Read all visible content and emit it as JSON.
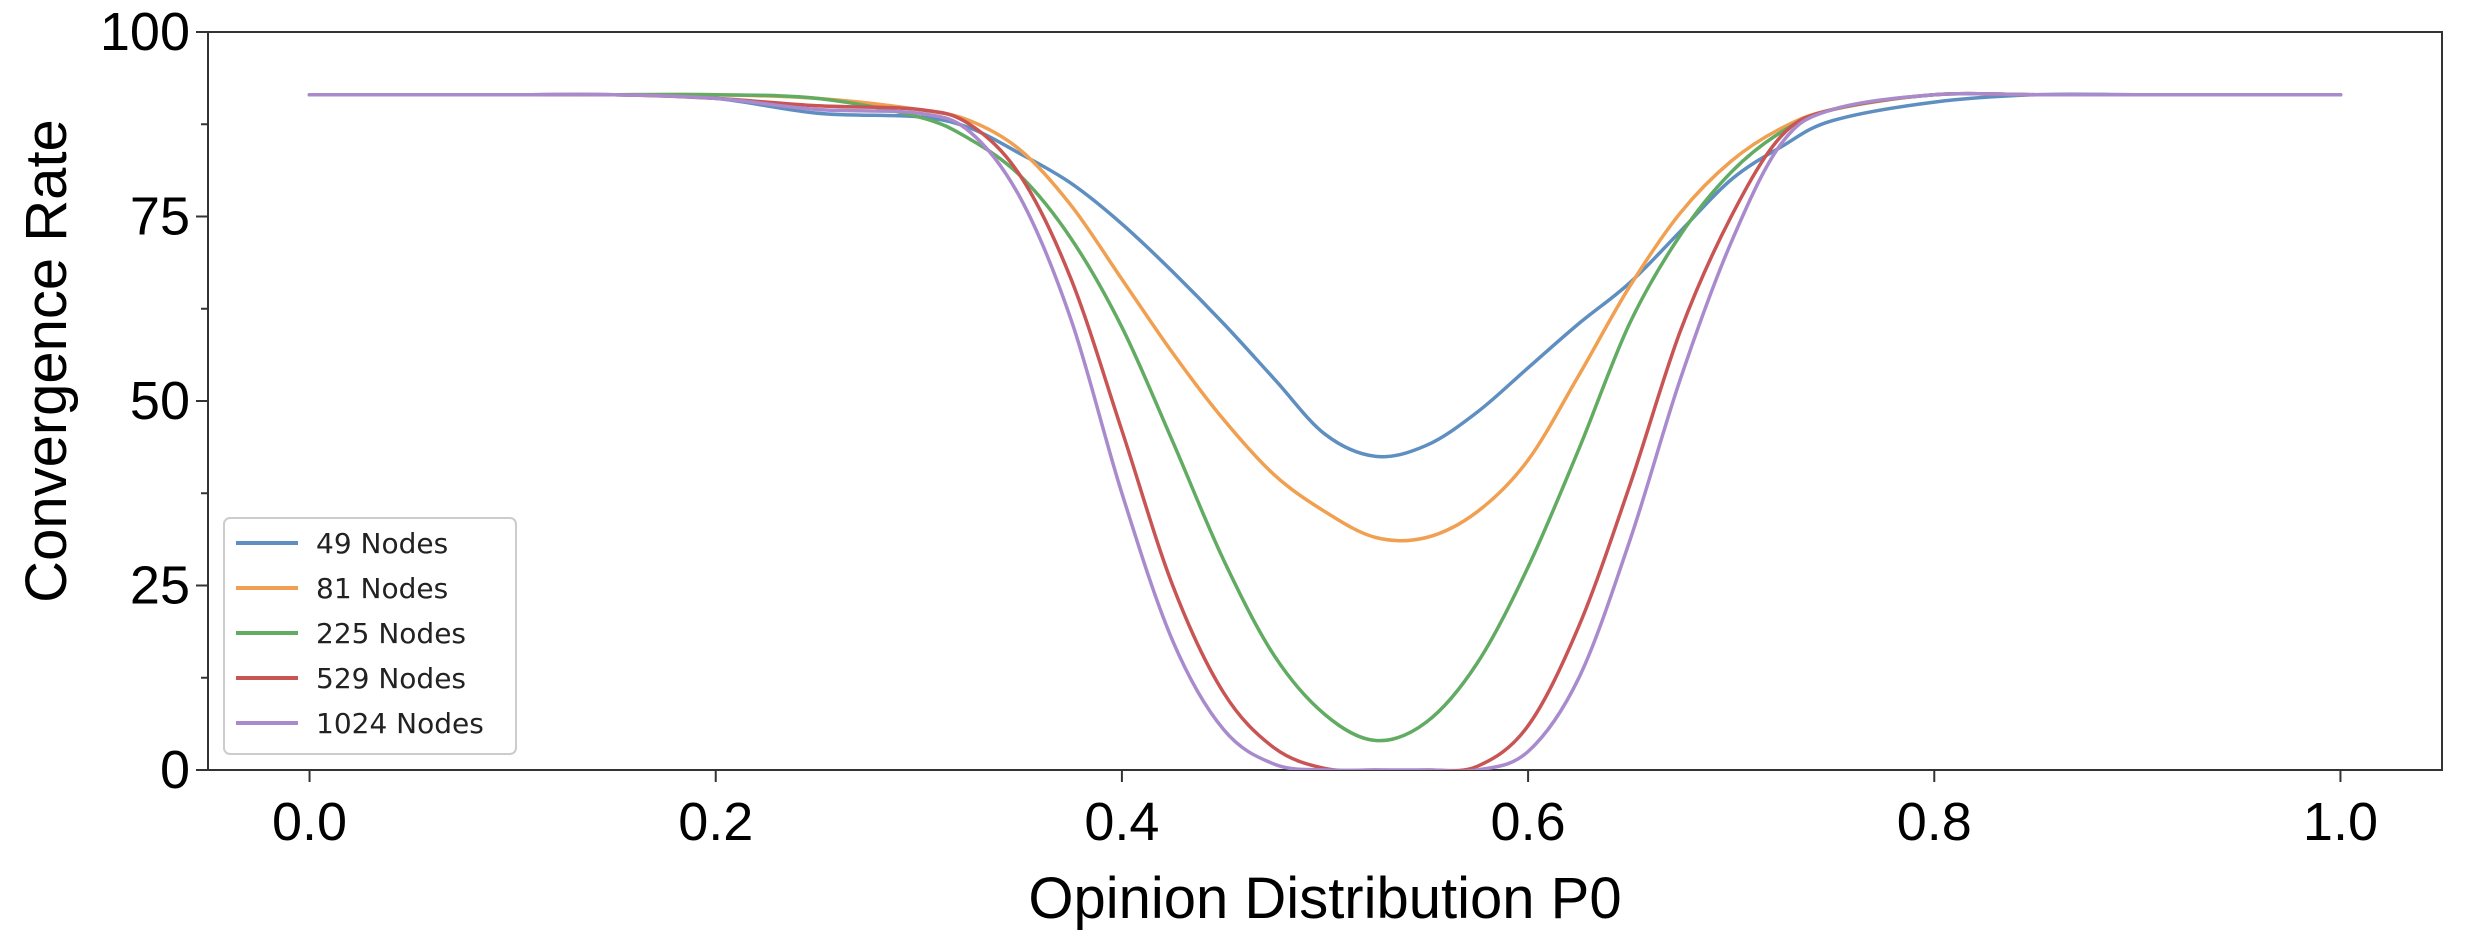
{
  "chart_data": {
    "type": "line",
    "title": "",
    "xlabel": "Opinion Distribution P0",
    "ylabel": "Convergence Rate",
    "xlim": [
      -0.05,
      1.05
    ],
    "ylim": [
      0,
      100
    ],
    "xticks": [
      0.0,
      0.2,
      0.4,
      0.6,
      0.8,
      1.0
    ],
    "xtick_labels": [
      "0.0",
      "0.2",
      "0.4",
      "0.6",
      "0.8",
      "1.0"
    ],
    "yticks": [
      0,
      25,
      50,
      75,
      100
    ],
    "ytick_labels": [
      "0",
      "25",
      "50",
      "75",
      "100"
    ],
    "grid": false,
    "legend_position": "lower-left",
    "x": [
      0.0,
      0.05,
      0.1,
      0.15,
      0.2,
      0.25,
      0.3,
      0.325,
      0.35,
      0.375,
      0.4,
      0.425,
      0.45,
      0.475,
      0.5,
      0.525,
      0.55,
      0.575,
      0.6,
      0.625,
      0.65,
      0.675,
      0.7,
      0.725,
      0.75,
      0.8,
      0.85,
      0.9,
      0.95,
      1.0
    ],
    "series": [
      {
        "name": "49 Nodes",
        "color": "#5f8fc0",
        "values": [
          91.5,
          91.5,
          91.5,
          91.5,
          91.0,
          89.0,
          88.5,
          87.0,
          83.5,
          79.5,
          74.0,
          67.5,
          60.5,
          53.0,
          45.5,
          42.5,
          44.0,
          48.5,
          54.5,
          60.5,
          66.0,
          73.0,
          80.0,
          84.5,
          88.0,
          90.5,
          91.5,
          91.5,
          91.5,
          91.5
        ]
      },
      {
        "name": "81 Nodes",
        "color": "#f0a050",
        "values": [
          91.5,
          91.5,
          91.5,
          91.5,
          91.5,
          91.0,
          89.5,
          88.0,
          84.0,
          76.5,
          66.5,
          56.5,
          47.5,
          40.0,
          35.0,
          31.5,
          31.5,
          35.0,
          42.0,
          53.5,
          65.5,
          75.5,
          82.5,
          87.0,
          89.5,
          91.5,
          91.5,
          91.5,
          91.5,
          91.5
        ]
      },
      {
        "name": "225 Nodes",
        "color": "#62ab62",
        "values": [
          91.5,
          91.5,
          91.5,
          91.5,
          91.5,
          91.0,
          88.5,
          85.5,
          80.5,
          72.0,
          60.0,
          44.5,
          28.5,
          15.5,
          7.5,
          4.0,
          6.5,
          14.5,
          27.5,
          43.5,
          60.5,
          72.5,
          81.0,
          86.5,
          89.5,
          91.5,
          91.5,
          91.5,
          91.5,
          91.5
        ]
      },
      {
        "name": "529 Nodes",
        "color": "#c85454",
        "values": [
          91.5,
          91.5,
          91.5,
          91.5,
          91.0,
          90.0,
          89.5,
          87.5,
          80.5,
          66.5,
          46.0,
          25.0,
          10.5,
          3.0,
          0.2,
          0.0,
          0.0,
          0.5,
          6.0,
          19.5,
          38.5,
          59.5,
          75.0,
          86.0,
          89.5,
          91.5,
          91.5,
          91.5,
          91.5,
          91.5
        ]
      },
      {
        "name": "1024 Nodes",
        "color": "#a98bcd",
        "values": [
          91.5,
          91.5,
          91.5,
          91.5,
          91.0,
          89.5,
          89.0,
          86.5,
          77.5,
          61.0,
          37.5,
          17.5,
          5.5,
          0.8,
          0.0,
          0.0,
          0.0,
          0.0,
          2.5,
          12.5,
          31.0,
          53.0,
          71.5,
          85.0,
          89.5,
          91.5,
          91.5,
          91.5,
          91.5,
          91.5
        ]
      }
    ]
  }
}
